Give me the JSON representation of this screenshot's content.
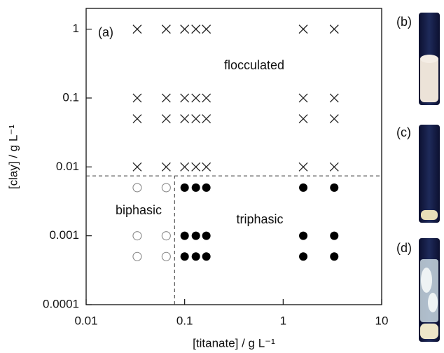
{
  "chart_data": {
    "type": "scatter",
    "xlabel": "[titanate] / g L⁻¹",
    "ylabel": "[clay] / g L⁻¹",
    "xlog": true,
    "ylog": true,
    "xlim": [
      0.01,
      10
    ],
    "ylim": [
      0.0001,
      2
    ],
    "xticks": [
      0.01,
      0.1,
      1,
      10
    ],
    "yticks": [
      0.0001,
      0.001,
      0.01,
      0.1,
      1
    ],
    "annotations": [
      "(a)",
      "flocculated",
      "biphasic",
      "triphasic"
    ],
    "boundary_y": 0.0074,
    "boundary_x": 0.079,
    "series": [
      {
        "marker": "cross",
        "color": "#222222",
        "x": [
          0.033,
          0.065,
          0.1,
          0.13,
          0.166,
          1.6,
          3.3,
          0.033,
          0.065,
          0.1,
          0.13,
          0.166,
          1.6,
          3.3,
          0.033,
          0.065,
          0.1,
          0.13,
          0.166,
          1.6,
          3.3,
          0.033,
          0.065,
          0.1,
          0.13,
          0.166,
          1.6,
          3.3
        ],
        "values": [
          1,
          1,
          1,
          1,
          1,
          1,
          1,
          0.1,
          0.1,
          0.1,
          0.1,
          0.1,
          0.1,
          0.1,
          0.05,
          0.05,
          0.05,
          0.05,
          0.05,
          0.05,
          0.05,
          0.01,
          0.01,
          0.01,
          0.01,
          0.01,
          0.01,
          0.01
        ]
      },
      {
        "marker": "open-circle",
        "color": "#888888",
        "x": [
          0.033,
          0.065,
          0.033,
          0.065,
          0.033,
          0.065
        ],
        "values": [
          0.005,
          0.005,
          0.001,
          0.001,
          0.0005,
          0.0005
        ]
      },
      {
        "marker": "filled-circle",
        "color": "#000000",
        "x": [
          0.1,
          0.13,
          0.166,
          1.6,
          3.3,
          0.1,
          0.13,
          0.166,
          1.6,
          3.3,
          0.1,
          0.13,
          0.166,
          1.6,
          3.3
        ],
        "values": [
          0.005,
          0.005,
          0.005,
          0.005,
          0.005,
          0.001,
          0.001,
          0.001,
          0.001,
          0.001,
          0.0005,
          0.0005,
          0.0005,
          0.0005,
          0.0005
        ]
      }
    ]
  },
  "photos": [
    {
      "label": "(b)"
    },
    {
      "label": "(c)"
    },
    {
      "label": "(d)"
    }
  ]
}
